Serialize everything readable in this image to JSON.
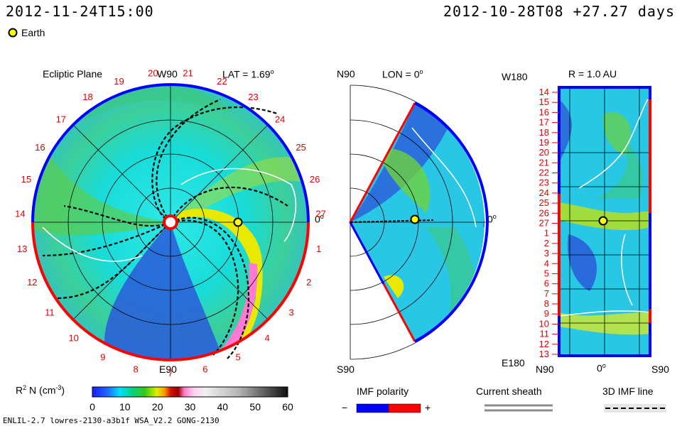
{
  "header": {
    "observation_time": "2012-11-24T15:00",
    "run_info": "2012-10-28T08 +27.27 days",
    "earth_label": "Earth"
  },
  "ecliptic_panel": {
    "title": "Ecliptic Plane",
    "top_label": "W90",
    "bottom_label": "E90",
    "lat_label": "LAT = 1.69",
    "lat_degree_sup": "o",
    "right_label": "0",
    "right_degree_sup": "o",
    "rotation_numbers": [
      "19",
      "20",
      "21",
      "22",
      "23",
      "24",
      "25",
      "26",
      "27",
      "1",
      "2",
      "3",
      "4",
      "5",
      "6",
      "7",
      "8",
      "9",
      "10",
      "11",
      "12",
      "13",
      "14",
      "15",
      "16",
      "17",
      "18"
    ]
  },
  "meridional_panel": {
    "top_label": "N90",
    "lon_label": "LON = 0",
    "lon_degree_sup": "o",
    "right_label": "0",
    "right_degree_sup": "o",
    "bottom_label": "S90"
  },
  "radial_panel": {
    "r_label": "R = 1.0 AU",
    "top_left_label": "W180",
    "bottom_left_label": "E180",
    "bottom_labels": [
      "N90",
      "0",
      "S90"
    ],
    "bottom_degree_sup": "o",
    "rotation_numbers": [
      "14",
      "15",
      "16",
      "17",
      "18",
      "19",
      "20",
      "21",
      "22",
      "23",
      "24",
      "25",
      "26",
      "27",
      "1",
      "2",
      "3",
      "4",
      "5",
      "6",
      "7",
      "8",
      "9",
      "10",
      "11",
      "12",
      "13"
    ]
  },
  "colorbar": {
    "label": "R",
    "label_sup": "2",
    "label_unit": " N (cm",
    "label_unit_sup": "-3",
    "label_close": ")",
    "ticks": [
      "0",
      "10",
      "20",
      "30",
      "40",
      "50",
      "60"
    ],
    "range": [
      0,
      60
    ]
  },
  "legends": {
    "imf_polarity": "IMF polarity",
    "minus": "−",
    "plus": "+",
    "current_sheath": "Current sheath",
    "imf_line": "3D IMF line"
  },
  "footer": {
    "model_info": "ENLIL-2.7 lowres-2130-a3b1f WSA_V2.2 GONG-2130"
  },
  "colors": {
    "positive_polarity": "#ff0000",
    "negative_polarity": "#0000ff",
    "rotation_numbers": "#e00000",
    "earth": "#ffff00"
  }
}
